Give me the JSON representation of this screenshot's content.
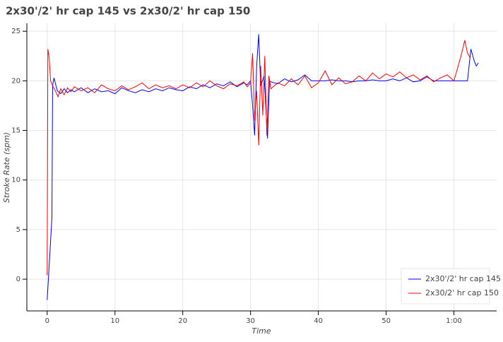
{
  "chart_data": {
    "type": "line",
    "title": "2x30'/2' hr cap 145 vs 2x30/2' hr cap 150",
    "x_label": "Time",
    "y_label": "Stroke Rate (spm)",
    "xlim": [
      -3,
      66.3
    ],
    "ylim": [
      -3.2,
      25.8
    ],
    "xticks": [
      0,
      10,
      20,
      30,
      40,
      50,
      {
        "value": 60,
        "label": "1:00"
      }
    ],
    "yticks": [
      0,
      5,
      10,
      15,
      20,
      25
    ],
    "grid": true,
    "legend": "bottom-right",
    "series": [
      {
        "name": "2x30'/2' hr cap 145",
        "color": "#0000ff",
        "x": [
          0,
          0.7,
          0.8,
          1,
          1.5,
          2,
          2.5,
          3,
          3.5,
          4,
          5,
          6,
          7,
          8,
          9,
          10,
          11,
          12,
          13,
          14,
          15,
          16,
          17,
          18,
          19,
          20,
          21,
          22,
          23,
          24,
          25,
          26,
          27,
          28,
          29,
          29.5,
          30,
          30.3,
          30.6,
          30.9,
          31.2,
          31.5,
          32,
          32.5,
          32.8,
          33,
          34,
          35,
          36,
          37,
          38,
          39,
          40,
          41,
          42,
          43,
          44,
          45,
          46,
          47,
          48,
          49,
          50,
          51,
          52,
          53,
          54,
          55,
          56,
          57,
          58,
          59,
          60,
          61,
          62,
          62.5,
          63,
          63.3,
          63.6
        ],
        "values": [
          -2.1,
          6.2,
          19.5,
          20.3,
          19.0,
          18.7,
          19.2,
          18.8,
          19.1,
          18.9,
          19.3,
          18.8,
          19.2,
          18.9,
          19.0,
          18.7,
          19.3,
          19.0,
          18.8,
          19.1,
          18.9,
          19.2,
          19.0,
          19.3,
          19.1,
          19.0,
          19.4,
          19.2,
          19.6,
          19.3,
          19.7,
          19.5,
          19.9,
          19.4,
          19.8,
          19.6,
          20.0,
          17.5,
          14.5,
          21.5,
          24.7,
          19.5,
          20.5,
          14.2,
          20.0,
          19.9,
          19.7,
          20.2,
          19.9,
          20.1,
          20.6,
          20.0,
          20.0,
          20.0,
          20.1,
          20.0,
          20.0,
          19.9,
          20.0,
          20.0,
          20.1,
          20.0,
          20.0,
          20.2,
          20.0,
          20.3,
          19.9,
          20.0,
          20.4,
          20.0,
          20.0,
          20.0,
          20.0,
          20.0,
          20.0,
          23.2,
          22.0,
          21.5,
          21.8
        ]
      },
      {
        "name": "2x30/2' hr cap 150",
        "color": "#ff0000",
        "x": [
          0,
          0.1,
          0.3,
          0.5,
          0.8,
          1.2,
          1.6,
          2,
          2.5,
          3,
          3.5,
          4,
          5,
          6,
          7,
          8,
          9,
          10,
          11,
          12,
          13,
          14,
          15,
          16,
          17,
          18,
          19,
          20,
          21,
          22,
          23,
          24,
          25,
          26,
          27,
          28,
          29,
          29.5,
          30,
          30.3,
          30.6,
          30.9,
          31.2,
          31.5,
          31.8,
          32.1,
          32.4,
          32.7,
          33,
          34,
          35,
          36,
          37,
          38,
          39,
          40,
          41,
          42,
          43,
          44,
          45,
          46,
          47,
          48,
          49,
          50,
          51,
          52,
          53,
          54,
          55,
          56,
          57,
          58,
          59,
          60,
          61,
          61.6,
          62,
          62.4
        ],
        "values": [
          0.4,
          23.2,
          22.3,
          20.0,
          19.5,
          19.0,
          18.4,
          19.2,
          18.6,
          19.3,
          18.9,
          19.4,
          19.0,
          19.3,
          18.8,
          19.6,
          19.2,
          19.0,
          19.5,
          19.1,
          19.4,
          19.8,
          19.2,
          19.6,
          19.3,
          19.5,
          19.2,
          19.6,
          19.3,
          19.8,
          19.4,
          20.0,
          19.5,
          19.2,
          19.7,
          19.5,
          19.9,
          19.4,
          19.8,
          22.8,
          16.0,
          19.0,
          13.5,
          21.5,
          16.5,
          22.5,
          14.5,
          20.5,
          19.2,
          19.8,
          19.5,
          20.2,
          19.6,
          20.5,
          19.3,
          19.8,
          21.0,
          19.6,
          20.3,
          19.7,
          19.9,
          20.5,
          20.0,
          20.8,
          20.2,
          20.7,
          20.4,
          20.9,
          20.3,
          20.6,
          20.1,
          20.5,
          19.9,
          20.3,
          20.6,
          20.0,
          22.4,
          24.1,
          22.8,
          22.3
        ]
      }
    ]
  }
}
